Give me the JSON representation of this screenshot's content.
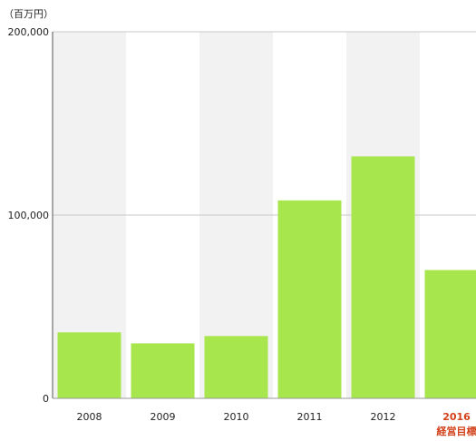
{
  "chart_data": {
    "type": "bar",
    "y_axis_label": "（百万円）",
    "categories": [
      "2008",
      "2009",
      "2010",
      "2011",
      "2012",
      "2016"
    ],
    "values": [
      36000,
      30000,
      34000,
      108000,
      132000,
      70000
    ],
    "color": "#a8e64e",
    "target_label": "経営目標",
    "target_index": 5,
    "target_color": "#d2401a",
    "ylim": [
      0,
      200000
    ],
    "yticks": [
      0,
      {
        "value": 100000,
        "label": "100,000"
      },
      {
        "value": 200000,
        "label": "200,000"
      }
    ],
    "grid": true,
    "band_color": "#f2f2f2"
  }
}
